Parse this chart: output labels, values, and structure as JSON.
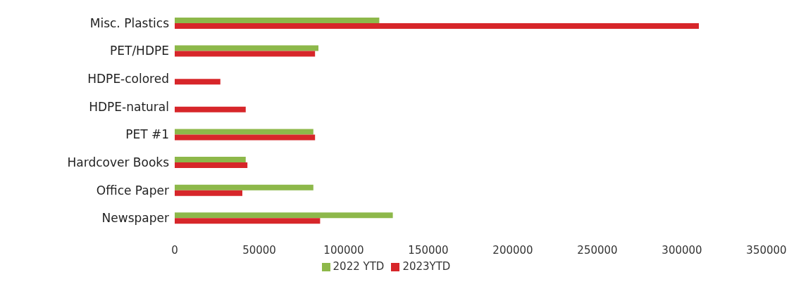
{
  "chart_data": {
    "type": "bar",
    "orientation": "horizontal",
    "categories": [
      "Misc. Plastics",
      "PET/HDPE",
      "HDPE-colored",
      "HDPE-natural",
      "PET #1",
      "Hardcover Books",
      "Office Paper",
      "Newspaper"
    ],
    "series": [
      {
        "name": "2022 YTD",
        "color": "#8db84a",
        "values": [
          121000,
          85000,
          null,
          null,
          82000,
          42000,
          82000,
          129000
        ]
      },
      {
        "name": "2023YTD",
        "color": "#d7262a",
        "values": [
          310000,
          83000,
          27000,
          42000,
          83000,
          43000,
          40000,
          86000
        ]
      }
    ],
    "xlim": [
      0,
      350000
    ],
    "xticks": [
      0,
      50000,
      100000,
      150000,
      200000,
      250000,
      300000,
      350000
    ],
    "grid": false,
    "legend": "bottom"
  }
}
